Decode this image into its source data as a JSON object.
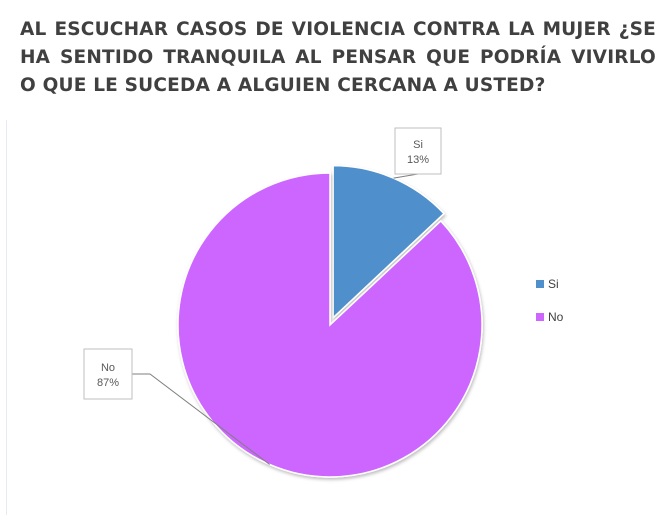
{
  "chart_data": {
    "type": "pie",
    "title": "AL ESCUCHAR CASOS DE VIOLENCIA CONTRA LA MUJER ¿SE HA SENTIDO TRANQUILA AL PENSAR QUE PODRÍA VIVIRLO O QUE LE SUCEDA A ALGUIEN CERCANA A USTED?",
    "slices": [
      {
        "label": "Si",
        "value": 13,
        "value_label": "13%",
        "color": "#4f8fcc",
        "exploded": true
      },
      {
        "label": "No",
        "value": 87,
        "value_label": "87%",
        "color": "#cc66ff",
        "exploded": false
      }
    ],
    "legend": {
      "position": "right",
      "entries": [
        "Si",
        "No"
      ]
    },
    "data_labels": "category-and-percent-callouts"
  }
}
